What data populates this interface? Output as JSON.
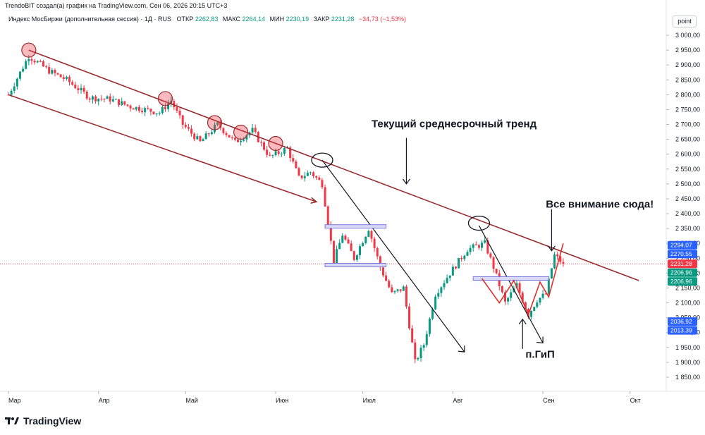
{
  "caption": "TrendoBIT создал(а) график на TradingView.com, Сен 06, 2026 20:15 UTC+3",
  "legend": {
    "symbol": "Индекс МосБиржи (дополнительная сессия) · 1Д · RUS",
    "open_label": "ОТКР",
    "open": "2262,83",
    "high_label": "МАКС",
    "high": "2264,14",
    "low_label": "МИН",
    "low": "2230,19",
    "close_label": "ЗАКР",
    "close": "2231,28",
    "change": "−34,73 (−1,53%)"
  },
  "unit_button": "point",
  "brand": "TradingView",
  "colors": {
    "up": "#089981",
    "down": "#f23645",
    "channel": "#9b2d30",
    "marker": "#e05c5c",
    "zone": "#7b7bd9",
    "badge_blue": "#2962ff",
    "badge_green": "#089981",
    "badge_red": "#f23645"
  },
  "chart_data": {
    "type": "candlestick",
    "title": "Индекс МосБиржи (дополнительная сессия) · 1Д · RUS",
    "ylim": [
      1830,
      3020
    ],
    "y_ticks": [
      "3 000,00",
      "2 950,00",
      "2 900,00",
      "2 850,00",
      "2 800,00",
      "2 750,00",
      "2 700,00",
      "2 650,00",
      "2 600,00",
      "2 550,00",
      "2 500,00",
      "2 450,00",
      "2 400,00",
      "2 350,00",
      "2 300,00",
      "2 250,00",
      "2 200,00",
      "2 150,00",
      "2 100,00",
      "2 050,00",
      "2 000,00",
      "1 950,00",
      "1 900,00",
      "1 850,00"
    ],
    "y_tick_values": [
      3000,
      2950,
      2900,
      2850,
      2800,
      2750,
      2700,
      2650,
      2600,
      2550,
      2500,
      2450,
      2400,
      2350,
      2300,
      2250,
      2200,
      2150,
      2100,
      2050,
      2000,
      1950,
      1900,
      1850
    ],
    "x_labels": [
      {
        "day": 0,
        "label": "Мар"
      },
      {
        "day": 31,
        "label": "Апр"
      },
      {
        "day": 61,
        "label": "Май"
      },
      {
        "day": 92,
        "label": "Июн"
      },
      {
        "day": 122,
        "label": "Июл"
      },
      {
        "day": 153,
        "label": "Авг"
      },
      {
        "day": 184,
        "label": "Сен"
      },
      {
        "day": 214,
        "label": "Окт"
      }
    ],
    "candles_anchors": [
      [
        0,
        2800
      ],
      [
        7,
        2930
      ],
      [
        14,
        2880
      ],
      [
        20,
        2850
      ],
      [
        28,
        2790
      ],
      [
        35,
        2785
      ],
      [
        42,
        2760
      ],
      [
        52,
        2740
      ],
      [
        56,
        2780
      ],
      [
        60,
        2700
      ],
      [
        66,
        2640
      ],
      [
        72,
        2700
      ],
      [
        78,
        2640
      ],
      [
        84,
        2680
      ],
      [
        90,
        2590
      ],
      [
        96,
        2620
      ],
      [
        100,
        2520
      ],
      [
        104,
        2540
      ],
      [
        108,
        2500
      ],
      [
        112,
        2240
      ],
      [
        115,
        2330
      ],
      [
        119,
        2250
      ],
      [
        124,
        2350
      ],
      [
        128,
        2220
      ],
      [
        132,
        2130
      ],
      [
        136,
        2150
      ],
      [
        140,
        1900
      ],
      [
        143,
        1960
      ],
      [
        147,
        2130
      ],
      [
        152,
        2200
      ],
      [
        158,
        2280
      ],
      [
        164,
        2300
      ],
      [
        167,
        2220
      ],
      [
        171,
        2100
      ],
      [
        175,
        2160
      ],
      [
        179,
        2060
      ],
      [
        182,
        2110
      ],
      [
        185,
        2130
      ],
      [
        188,
        2260
      ],
      [
        191,
        2231
      ]
    ],
    "last_close": 2231.28,
    "price_badges": [
      {
        "value": "2294,07",
        "y": 2294.07,
        "color": "blue"
      },
      {
        "value": "2270,55",
        "y": 2270.55,
        "color": "blue"
      },
      {
        "value": "2231,28",
        "y": 2231.28,
        "color": "red"
      },
      {
        "value": "2206,96",
        "y": 2206.96,
        "color": "green"
      },
      {
        "value": "2206,96",
        "y": 2206.96,
        "color": "green"
      },
      {
        "value": "2036,92",
        "y": 2036.92,
        "color": "blue"
      },
      {
        "value": "2013,39",
        "y": 2013.39,
        "color": "blue"
      }
    ],
    "channel_upper": [
      [
        7,
        2950
      ],
      [
        217,
        2175
      ]
    ],
    "channel_lower": [
      [
        0,
        2800
      ],
      [
        106,
        2440
      ]
    ],
    "trend_lines": [
      [
        [
          108,
          2580
        ],
        [
          157,
          1935
        ]
      ],
      [
        [
          162,
          2360
        ],
        [
          184,
          1965
        ]
      ]
    ],
    "zones": [
      [
        [
          109,
          2357
        ],
        [
          130,
          2357
        ]
      ],
      [
        [
          109,
          2227
        ],
        [
          130,
          2227
        ]
      ],
      [
        [
          160,
          2182
        ],
        [
          186,
          2182
        ]
      ]
    ],
    "resistance_markers": [
      [
        7,
        2950
      ],
      [
        54,
        2787
      ],
      [
        71,
        2706
      ],
      [
        80,
        2674
      ],
      [
        92,
        2636
      ]
    ],
    "ellipses": [
      [
        108,
        2580
      ],
      [
        162,
        2368
      ]
    ],
    "pattern_path": [
      [
        163,
        2182
      ],
      [
        169,
        2100
      ],
      [
        174,
        2175
      ],
      [
        179,
        2060
      ],
      [
        183,
        2170
      ],
      [
        186,
        2120
      ],
      [
        191,
        2300
      ]
    ],
    "annotations": [
      {
        "text": "Текущий среднесрочный тренд",
        "x": 125,
        "y": 2690,
        "size": 15
      },
      {
        "text": "Все внимание сюда!",
        "x": 185,
        "y": 2420,
        "size": 15
      },
      {
        "text": "п.ГиП",
        "x": 178,
        "y": 1915,
        "size": 15
      }
    ],
    "arrows": [
      [
        [
          137,
          2655
        ],
        [
          137,
          2500
        ]
      ],
      [
        [
          187,
          2415
        ],
        [
          187,
          2275
        ]
      ],
      [
        [
          177,
          1945
        ],
        [
          177,
          2045
        ]
      ]
    ]
  }
}
